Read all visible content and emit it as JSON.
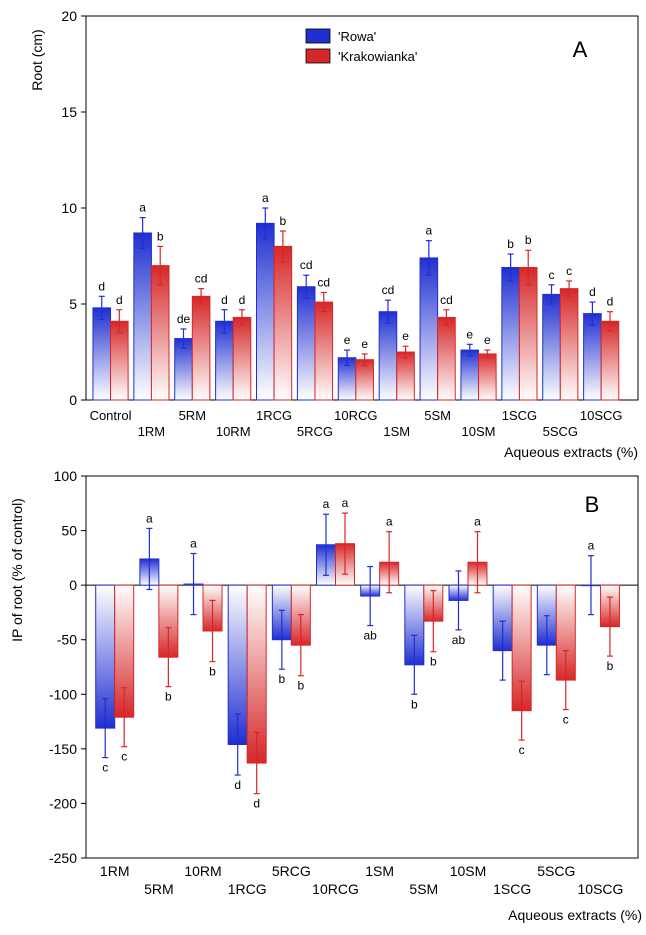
{
  "chart_data": [
    {
      "type": "bar",
      "panel_label": "A",
      "ylabel": "Root (cm)",
      "xlabel": "Aqueous extracts (%)",
      "ylim": [
        0,
        20
      ],
      "yticks": [
        0,
        5,
        10,
        15,
        20
      ],
      "grid": false,
      "legend_position": "top-center",
      "categories": [
        "Control",
        "1RM",
        "5RM",
        "10RM",
        "1RCG",
        "5RCG",
        "10RCG",
        "1SM",
        "5SM",
        "10SM",
        "1SCG",
        "5SCG",
        "10SCG"
      ],
      "series": [
        {
          "name": "'Rowa'",
          "color": "#1f2fd0",
          "values": [
            4.8,
            8.7,
            3.2,
            4.1,
            9.2,
            5.9,
            2.2,
            4.6,
            7.4,
            2.6,
            6.9,
            5.5,
            4.5
          ],
          "errors": [
            0.6,
            0.8,
            0.5,
            0.6,
            0.8,
            0.6,
            0.4,
            0.6,
            0.9,
            0.3,
            0.7,
            0.5,
            0.6
          ],
          "labels": [
            "d",
            "a",
            "de",
            "d",
            "a",
            "cd",
            "e",
            "cd",
            "a",
            "e",
            "b",
            "c",
            "d"
          ]
        },
        {
          "name": "'Krakowianka'",
          "color": "#d62728",
          "values": [
            4.1,
            7.0,
            5.4,
            4.3,
            8.0,
            5.1,
            2.1,
            2.5,
            4.3,
            2.4,
            6.9,
            5.8,
            4.1
          ],
          "errors": [
            0.6,
            1.0,
            0.4,
            0.4,
            0.8,
            0.5,
            0.3,
            0.3,
            0.4,
            0.2,
            0.9,
            0.4,
            0.5
          ],
          "labels": [
            "d",
            "b",
            "cd",
            "d",
            "b",
            "cd",
            "e",
            "e",
            "cd",
            "e",
            "b",
            "c",
            "d"
          ]
        }
      ]
    },
    {
      "type": "bar",
      "panel_label": "B",
      "ylabel": "IP of root (% of control)",
      "xlabel": "Aqueous extracts (%)",
      "ylim": [
        -250,
        100
      ],
      "yticks": [
        -250,
        -200,
        -150,
        -100,
        -50,
        0,
        50,
        100
      ],
      "grid": false,
      "categories": [
        "1RM",
        "5RM",
        "10RM",
        "1RCG",
        "5RCG",
        "10RCG",
        "1SM",
        "5SM",
        "10SM",
        "1SCG",
        "5SCG",
        "10SCG"
      ],
      "series": [
        {
          "name": "'Rowa'",
          "color": "#1f2fd0",
          "values": [
            -131,
            24,
            1,
            -146,
            -50,
            37,
            -10,
            -73,
            -14,
            -60,
            -55,
            0
          ],
          "errors": [
            27,
            28,
            28,
            28,
            27,
            28,
            27,
            27,
            27,
            27,
            27,
            27
          ],
          "labels": [
            "c",
            "a",
            "a",
            "d",
            "b",
            "a",
            "ab",
            "b",
            "ab",
            "",
            "",
            "a"
          ]
        },
        {
          "name": "'Krakowianka'",
          "color": "#d62728",
          "values": [
            -121,
            -66,
            -42,
            -163,
            -55,
            38,
            21,
            -33,
            21,
            -115,
            -87,
            -38
          ],
          "errors": [
            27,
            27,
            28,
            28,
            28,
            28,
            28,
            28,
            28,
            27,
            27,
            27
          ],
          "labels": [
            "c",
            "b",
            "b",
            "d",
            "b",
            "a",
            "a",
            "b",
            "a",
            "c",
            "c",
            "b"
          ]
        }
      ]
    }
  ]
}
